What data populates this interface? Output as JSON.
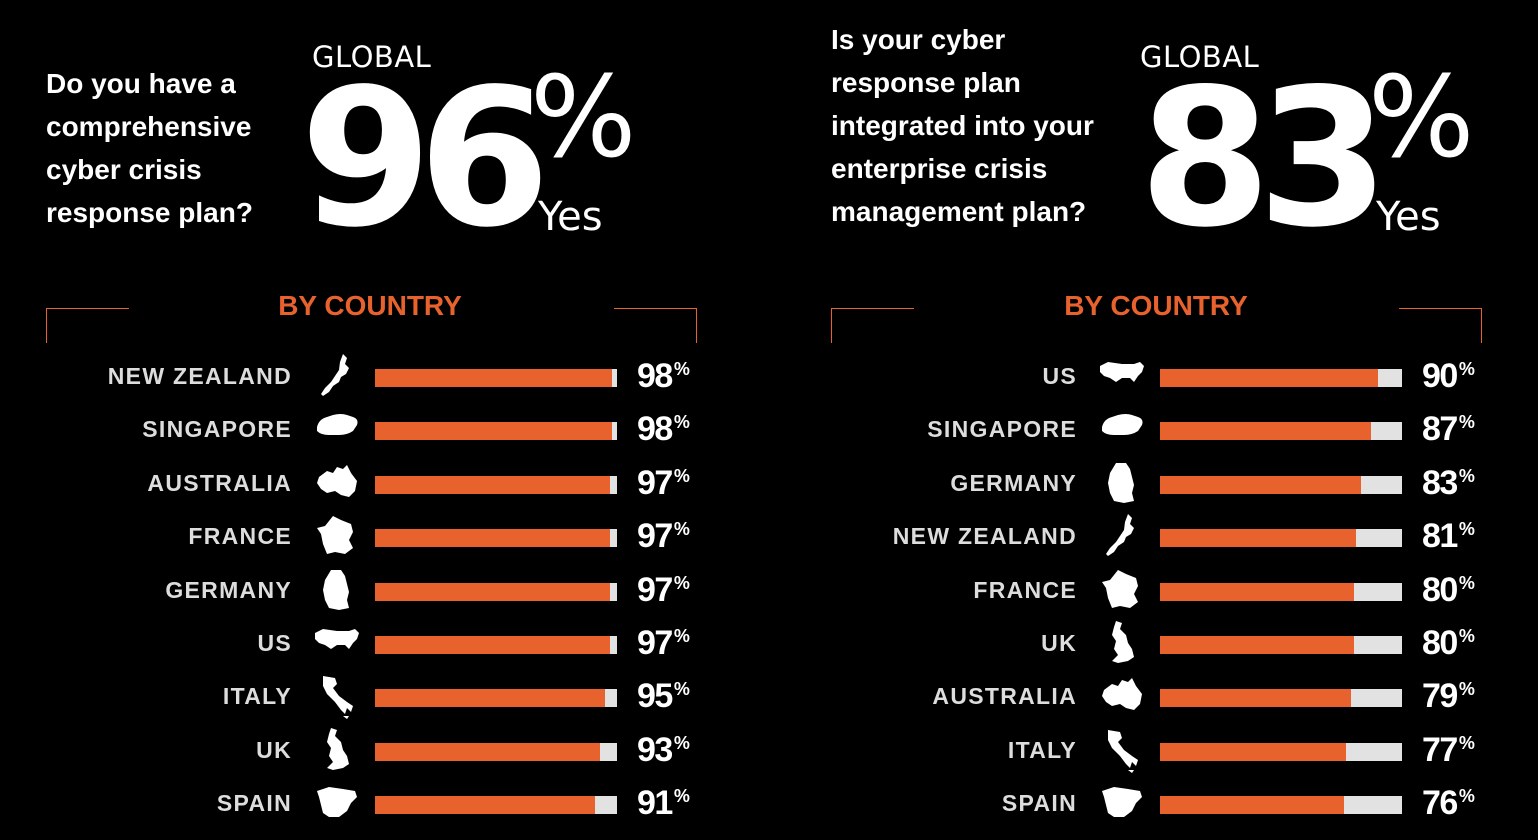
{
  "colors": {
    "accent": "#e8622e",
    "track": "#e2e2e2",
    "background": "#000000"
  },
  "panels": [
    {
      "question_lines": [
        "Do you have a",
        "comprehensive",
        "cyber crisis",
        "response plan?"
      ],
      "global_label": "GLOBAL",
      "global_value": "96",
      "global_percent_sign": "%",
      "yes_label": "Yes",
      "by_country_label": "BY COUNTRY",
      "percent_sign": "%"
    },
    {
      "question_lines": [
        "Is your cyber",
        "response plan",
        "integrated into your",
        "enterprise crisis",
        "management plan?"
      ],
      "global_label": "GLOBAL",
      "global_value": "83",
      "global_percent_sign": "%",
      "yes_label": "Yes",
      "by_country_label": "BY COUNTRY",
      "percent_sign": "%"
    }
  ],
  "chart_data": [
    {
      "type": "bar",
      "orientation": "horizontal",
      "title": "BY COUNTRY",
      "categories": [
        "NEW ZEALAND",
        "SINGAPORE",
        "AUSTRALIA",
        "FRANCE",
        "GERMANY",
        "US",
        "ITALY",
        "UK",
        "SPAIN"
      ],
      "values": [
        98,
        98,
        97,
        97,
        97,
        97,
        95,
        93,
        91
      ],
      "icons": [
        "new-zealand-map-icon",
        "singapore-map-icon",
        "australia-map-icon",
        "france-map-icon",
        "germany-map-icon",
        "us-map-icon",
        "italy-map-icon",
        "uk-map-icon",
        "spain-map-icon"
      ],
      "xlim": [
        0,
        100
      ]
    },
    {
      "type": "bar",
      "orientation": "horizontal",
      "title": "BY COUNTRY",
      "categories": [
        "US",
        "SINGAPORE",
        "GERMANY",
        "NEW ZEALAND",
        "FRANCE",
        "UK",
        "AUSTRALIA",
        "ITALY",
        "SPAIN"
      ],
      "values": [
        90,
        87,
        83,
        81,
        80,
        80,
        79,
        77,
        76
      ],
      "icons": [
        "us-map-icon",
        "singapore-map-icon",
        "germany-map-icon",
        "new-zealand-map-icon",
        "france-map-icon",
        "uk-map-icon",
        "australia-map-icon",
        "italy-map-icon",
        "spain-map-icon"
      ],
      "xlim": [
        0,
        100
      ]
    }
  ]
}
